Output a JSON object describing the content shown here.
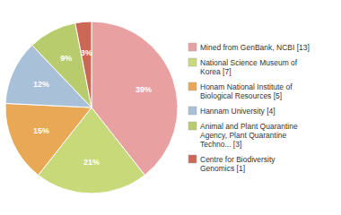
{
  "chart_data": {
    "type": "pie",
    "categories": [
      "Mined from GenBank, NCBI [13]",
      "National Science Museum of\nKorea [7]",
      "Honam National Institute of\nBiological Resources [5]",
      "Hannam University [4]",
      "Animal and Plant Quarantine\nAgency, Plant Quarantine\nTechno... [3]",
      "Centre for Biodiversity\nGenomics [1]"
    ],
    "values": [
      39,
      21,
      15,
      12,
      9,
      3
    ],
    "value_labels": [
      "39%",
      "21%",
      "15%",
      "12%",
      "9%",
      "3%"
    ],
    "colors": [
      "#e8a0a0",
      "#c8d97a",
      "#e8a855",
      "#a8c0d8",
      "#b8cc6e",
      "#cc6655"
    ],
    "data_labels": true,
    "legend": "right"
  }
}
